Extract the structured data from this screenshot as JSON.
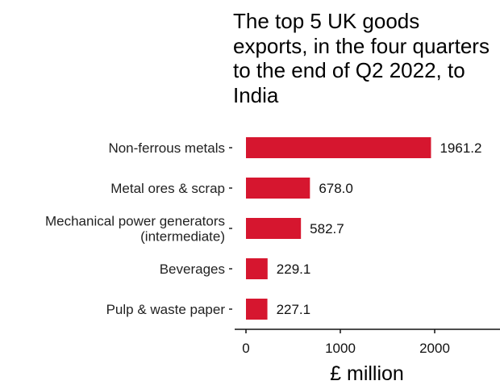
{
  "chart_data": {
    "type": "bar",
    "orientation": "horizontal",
    "title": "The top 5 UK goods exports, in the four quarters to the end of Q2 2022, to India",
    "xlabel": "£ million",
    "ylabel": "",
    "categories": [
      [
        "Non-ferrous metals"
      ],
      [
        "Metal ores & scrap"
      ],
      [
        "Mechanical power generators",
        "(intermediate)"
      ],
      [
        "Beverages"
      ],
      [
        "Pulp & waste paper"
      ]
    ],
    "values": [
      1961.2,
      678.0,
      582.7,
      229.1,
      227.1
    ],
    "value_labels": [
      "1961.2",
      "678.0",
      "582.7",
      "229.1",
      "227.1"
    ],
    "xlim": [
      0,
      2650
    ],
    "xticks": [
      0,
      1000,
      2000
    ],
    "xtick_labels": [
      "0",
      "1000",
      "2000"
    ],
    "bar_color": "#d6162f",
    "grid": false,
    "legend": "none"
  }
}
